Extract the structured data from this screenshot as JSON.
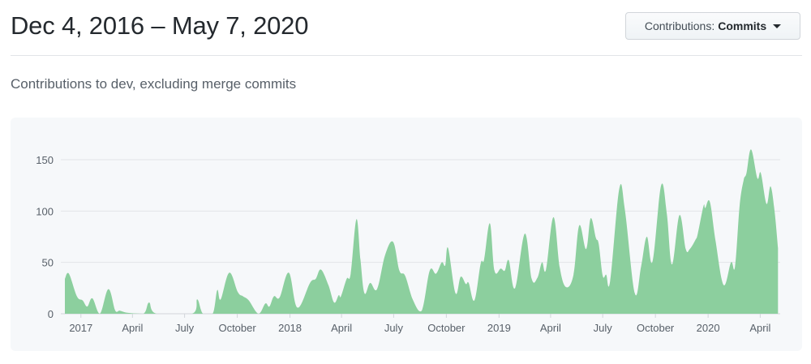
{
  "header": {
    "title": "Dec 4, 2016 – May 7, 2020",
    "filter_button": {
      "label": "Contributions:",
      "value": "Commits",
      "icon": "caret-down-icon"
    }
  },
  "subtitle": "Contributions to dev, excluding merge commits",
  "colors": {
    "area": "#8ccf9e",
    "grid": "#e1e4e8",
    "card_bg": "#f6f8fa",
    "label": "#586069"
  },
  "chart_data": {
    "type": "area",
    "title": "",
    "xlabel": "",
    "ylabel": "",
    "xlim": [
      "2016-12-04",
      "2020-05-03"
    ],
    "ylim": [
      0,
      160
    ],
    "grid": true,
    "y_ticks": [
      0,
      50,
      100,
      150
    ],
    "x_ticks": [
      {
        "label": "2017",
        "date": "2017-01-01"
      },
      {
        "label": "April",
        "date": "2017-04-01"
      },
      {
        "label": "July",
        "date": "2017-07-01"
      },
      {
        "label": "October",
        "date": "2017-10-01"
      },
      {
        "label": "2018",
        "date": "2018-01-01"
      },
      {
        "label": "April",
        "date": "2018-04-01"
      },
      {
        "label": "July",
        "date": "2018-07-01"
      },
      {
        "label": "October",
        "date": "2018-10-01"
      },
      {
        "label": "2019",
        "date": "2019-01-01"
      },
      {
        "label": "April",
        "date": "2019-04-01"
      },
      {
        "label": "July",
        "date": "2019-07-01"
      },
      {
        "label": "October",
        "date": "2019-10-01"
      },
      {
        "label": "2020",
        "date": "2020-01-01"
      },
      {
        "label": "April",
        "date": "2020-04-01"
      }
    ],
    "series": [
      {
        "points": [
          [
            "2016-12-04",
            34
          ],
          [
            "2016-12-11",
            39
          ],
          [
            "2016-12-25",
            17
          ],
          [
            "2017-01-04",
            13
          ],
          [
            "2017-01-12",
            7
          ],
          [
            "2017-01-21",
            15
          ],
          [
            "2017-02-03",
            0
          ],
          [
            "2017-02-18",
            24
          ],
          [
            "2017-03-02",
            3
          ],
          [
            "2017-03-10",
            3
          ],
          [
            "2017-03-23",
            1
          ],
          [
            "2017-04-20",
            0
          ],
          [
            "2017-04-30",
            11
          ],
          [
            "2017-05-13",
            0
          ],
          [
            "2017-07-14",
            0
          ],
          [
            "2017-07-23",
            14
          ],
          [
            "2017-08-02",
            0
          ],
          [
            "2017-08-19",
            0
          ],
          [
            "2017-08-27",
            23
          ],
          [
            "2017-09-02",
            14
          ],
          [
            "2017-09-17",
            40
          ],
          [
            "2017-10-02",
            21
          ],
          [
            "2017-10-11",
            17
          ],
          [
            "2017-10-21",
            13
          ],
          [
            "2017-11-07",
            0
          ],
          [
            "2017-11-19",
            10
          ],
          [
            "2017-11-26",
            7
          ],
          [
            "2017-12-04",
            17
          ],
          [
            "2017-12-14",
            16
          ],
          [
            "2017-12-30",
            40
          ],
          [
            "2018-01-14",
            6
          ],
          [
            "2018-02-05",
            30
          ],
          [
            "2018-02-15",
            34
          ],
          [
            "2018-02-24",
            43
          ],
          [
            "2018-03-09",
            28
          ],
          [
            "2018-03-19",
            11
          ],
          [
            "2018-03-27",
            18
          ],
          [
            "2018-03-31",
            17
          ],
          [
            "2018-04-10",
            34
          ],
          [
            "2018-04-17",
            39
          ],
          [
            "2018-04-27",
            92
          ],
          [
            "2018-05-04",
            53
          ],
          [
            "2018-05-11",
            20
          ],
          [
            "2018-05-21",
            30
          ],
          [
            "2018-06-02",
            24
          ],
          [
            "2018-06-16",
            57
          ],
          [
            "2018-06-30",
            70
          ],
          [
            "2018-07-11",
            42
          ],
          [
            "2018-07-21",
            37
          ],
          [
            "2018-08-04",
            13
          ],
          [
            "2018-08-19",
            3
          ],
          [
            "2018-09-02",
            42
          ],
          [
            "2018-09-13",
            39
          ],
          [
            "2018-09-23",
            50
          ],
          [
            "2018-09-29",
            47
          ],
          [
            "2018-10-04",
            64
          ],
          [
            "2018-10-17",
            20
          ],
          [
            "2018-10-26",
            36
          ],
          [
            "2018-11-04",
            29
          ],
          [
            "2018-11-09",
            30
          ],
          [
            "2018-11-19",
            13
          ],
          [
            "2018-11-30",
            49
          ],
          [
            "2018-12-06",
            53
          ],
          [
            "2018-12-16",
            88
          ],
          [
            "2018-12-24",
            42
          ],
          [
            "2019-01-04",
            44
          ],
          [
            "2019-01-11",
            42
          ],
          [
            "2019-01-18",
            52
          ],
          [
            "2019-01-29",
            25
          ],
          [
            "2019-02-15",
            78
          ],
          [
            "2019-02-27",
            34
          ],
          [
            "2019-03-09",
            35
          ],
          [
            "2019-03-17",
            50
          ],
          [
            "2019-03-24",
            43
          ],
          [
            "2019-04-06",
            94
          ],
          [
            "2019-04-17",
            45
          ],
          [
            "2019-04-28",
            26
          ],
          [
            "2019-05-11",
            38
          ],
          [
            "2019-05-21",
            86
          ],
          [
            "2019-06-02",
            63
          ],
          [
            "2019-06-10",
            93
          ],
          [
            "2019-06-19",
            74
          ],
          [
            "2019-06-24",
            68
          ],
          [
            "2019-07-01",
            37
          ],
          [
            "2019-07-07",
            38
          ],
          [
            "2019-07-14",
            32
          ],
          [
            "2019-07-30",
            122
          ],
          [
            "2019-08-09",
            100
          ],
          [
            "2019-08-26",
            20
          ],
          [
            "2019-09-06",
            46
          ],
          [
            "2019-09-16",
            75
          ],
          [
            "2019-09-26",
            51
          ],
          [
            "2019-10-11",
            125
          ],
          [
            "2019-10-21",
            97
          ],
          [
            "2019-10-30",
            48
          ],
          [
            "2019-11-12",
            96
          ],
          [
            "2019-11-23",
            63
          ],
          [
            "2019-11-30",
            63
          ],
          [
            "2019-12-10",
            72
          ],
          [
            "2019-12-14",
            78
          ],
          [
            "2019-12-24",
            105
          ],
          [
            "2019-12-27",
            103
          ],
          [
            "2020-01-04",
            109
          ],
          [
            "2020-01-14",
            71
          ],
          [
            "2020-01-28",
            28
          ],
          [
            "2020-02-10",
            50
          ],
          [
            "2020-02-17",
            46
          ],
          [
            "2020-02-25",
            105
          ],
          [
            "2020-03-03",
            130
          ],
          [
            "2020-03-08",
            137
          ],
          [
            "2020-03-16",
            160
          ],
          [
            "2020-03-27",
            132
          ],
          [
            "2020-04-02",
            137
          ],
          [
            "2020-04-12",
            107
          ],
          [
            "2020-04-19",
            124
          ],
          [
            "2020-04-26",
            100
          ],
          [
            "2020-05-02",
            64
          ]
        ]
      }
    ]
  }
}
